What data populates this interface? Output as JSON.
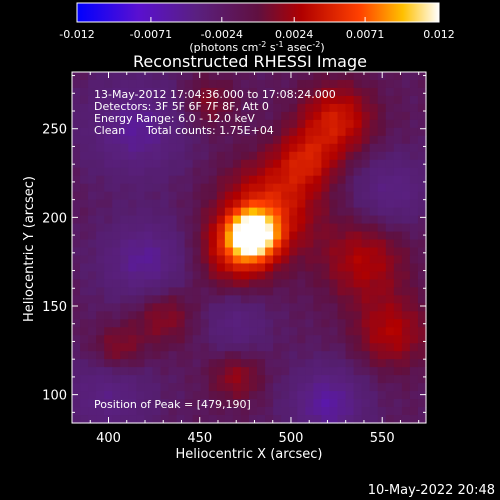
{
  "chart_data": {
    "type": "heatmap",
    "title": "Reconstructed RHESSI Image",
    "xlabel": "Heliocentric X (arcsec)",
    "ylabel": "Heliocentric Y (arcsec)",
    "xlim": [
      380,
      574
    ],
    "ylim": [
      84,
      282
    ],
    "x_ticks": [
      "400",
      "450",
      "500",
      "550"
    ],
    "y_ticks": [
      "100",
      "150",
      "200",
      "250"
    ],
    "colorbar": {
      "ticks": [
        "-0.012",
        "-0.0071",
        "-0.0024",
        "0.0024",
        "0.0071",
        "0.012"
      ],
      "range": [
        -0.012,
        0.012
      ],
      "unit_label_parts": [
        "(photons cm",
        "-2",
        " s",
        "-1",
        " asec",
        "-2",
        ")"
      ]
    },
    "info": {
      "line1": "13-May-2012 17:04:36.000 to 17:08:24.000",
      "line2": "Detectors: 3F 5F 6F 7F 8F, Att 0",
      "line3": "Energy Range: 6.0 - 12.0 keV",
      "line4_method": "Clean",
      "line4_counts": "Total counts: 1.75E+04"
    },
    "peak_label": "Position of Peak = [479,190]",
    "peak": [
      479,
      190
    ],
    "sources": [
      {
        "x": 479,
        "y": 190,
        "amp": 0.0125,
        "sigma": 9
      },
      {
        "x": 488,
        "y": 205,
        "amp": 0.006,
        "sigma": 18
      },
      {
        "x": 470,
        "y": 180,
        "amp": 0.005,
        "sigma": 14
      },
      {
        "x": 525,
        "y": 255,
        "amp": 0.0055,
        "sigma": 14
      },
      {
        "x": 508,
        "y": 232,
        "amp": 0.0045,
        "sigma": 12
      },
      {
        "x": 540,
        "y": 175,
        "amp": 0.004,
        "sigma": 16
      },
      {
        "x": 555,
        "y": 135,
        "amp": 0.004,
        "sigma": 14
      },
      {
        "x": 430,
        "y": 145,
        "amp": 0.003,
        "sigma": 12
      },
      {
        "x": 405,
        "y": 125,
        "amp": 0.003,
        "sigma": 10
      },
      {
        "x": 470,
        "y": 110,
        "amp": 0.003,
        "sigma": 10
      },
      {
        "x": 455,
        "y": 265,
        "amp": 0.0025,
        "sigma": 10
      },
      {
        "x": 400,
        "y": 100,
        "amp": -0.003,
        "sigma": 16
      },
      {
        "x": 420,
        "y": 175,
        "amp": -0.004,
        "sigma": 16
      },
      {
        "x": 415,
        "y": 250,
        "amp": -0.004,
        "sigma": 18
      },
      {
        "x": 520,
        "y": 95,
        "amp": -0.0045,
        "sigma": 14
      },
      {
        "x": 555,
        "y": 215,
        "amp": -0.003,
        "sigma": 14
      },
      {
        "x": 470,
        "y": 140,
        "amp": -0.0025,
        "sigma": 12
      }
    ]
  },
  "timestamp": "10-May-2022 20:48",
  "colors": {
    "background": "#000000",
    "foreground": "#ffffff"
  }
}
